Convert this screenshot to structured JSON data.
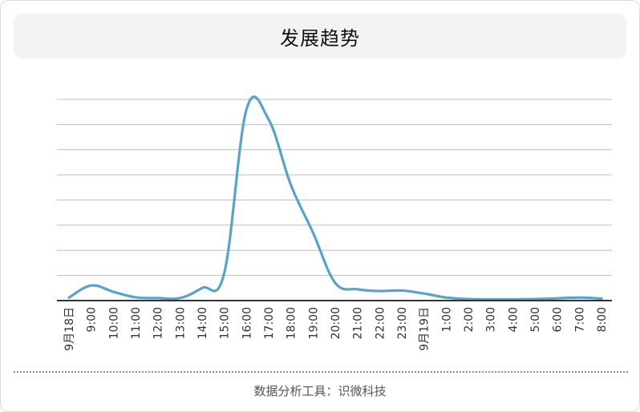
{
  "title": "发展趋势",
  "footer": "数据分析工具：识微科技",
  "colors": {
    "line": "#5aa3c6",
    "grid": "#bdbdbd",
    "axis": "#333333",
    "tick_text": "#333333"
  },
  "chart_data": {
    "type": "line",
    "title": "发展趋势",
    "xlabel": "",
    "ylabel": "",
    "grid": true,
    "ylim": [
      0,
      8
    ],
    "x": [
      "9月18日",
      "9:00",
      "10:00",
      "11:00",
      "12:00",
      "13:00",
      "14:00",
      "15:00",
      "16:00",
      "17:00",
      "18:00",
      "19:00",
      "20:00",
      "21:00",
      "22:00",
      "23:00",
      "9月19日",
      "1:00",
      "2:00",
      "3:00",
      "4:00",
      "5:00",
      "6:00",
      "7:00",
      "8:00"
    ],
    "series": [
      {
        "values": [
          0.12,
          0.6,
          0.35,
          0.13,
          0.1,
          0.1,
          0.5,
          1.1,
          7.6,
          7.2,
          4.6,
          2.7,
          0.7,
          0.45,
          0.38,
          0.4,
          0.28,
          0.12,
          0.06,
          0.05,
          0.05,
          0.06,
          0.09,
          0.12,
          0.08
        ]
      }
    ]
  }
}
